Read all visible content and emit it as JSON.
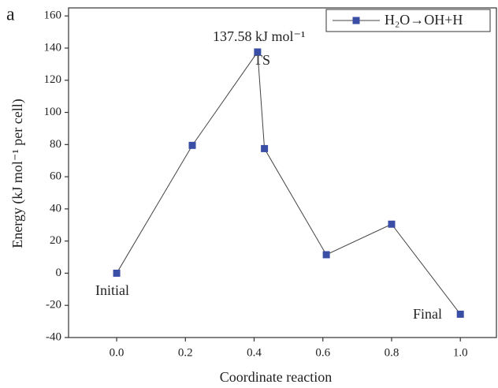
{
  "chart_data": {
    "type": "line",
    "panel_label": "a",
    "xlabel": "Coordinate reaction",
    "ylabel": "Energy (kJ mol⁻¹ per cell)",
    "x": [
      0.0,
      0.22,
      0.41,
      0.43,
      0.61,
      0.8,
      1.0
    ],
    "series": [
      {
        "name": "H₂O→OH+H",
        "color": "#3a4ea6",
        "values": [
          0,
          79.5,
          137.58,
          77.5,
          11.5,
          30.5,
          -25.5
        ]
      }
    ],
    "annotations": [
      "137.58 kJ mol⁻¹",
      "TS",
      "Initial",
      "Final"
    ],
    "xlim": [
      -0.14,
      1.105
    ],
    "ylim": [
      -40,
      165
    ],
    "xticks": [
      {
        "value": 0.0,
        "label": "0.0"
      },
      {
        "value": 0.2,
        "label": "0.2"
      },
      {
        "value": 0.4,
        "label": "0.4"
      },
      {
        "value": 0.6,
        "label": "0.6"
      },
      {
        "value": 0.8,
        "label": "0.8"
      },
      {
        "value": 1.0,
        "label": "1.0"
      }
    ],
    "yticks": [
      -40,
      -20,
      0,
      20,
      40,
      60,
      80,
      100,
      120,
      140,
      160
    ],
    "legend": "upper right",
    "grid": false
  }
}
